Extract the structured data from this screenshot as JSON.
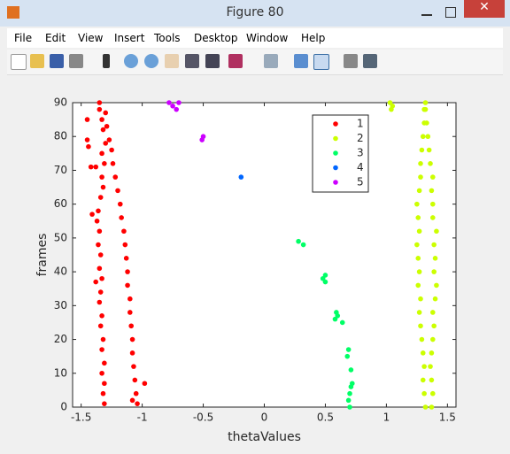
{
  "window": {
    "title": "Figure 80",
    "menu": [
      "File",
      "Edit",
      "View",
      "Insert",
      "Tools",
      "Desktop",
      "Window",
      "Help"
    ]
  },
  "chart_data": {
    "type": "scatter",
    "xlabel": "thetaValues",
    "ylabel": "frames",
    "xlim": [
      -1.57,
      1.57
    ],
    "ylim": [
      0,
      90
    ],
    "xticks": [
      -1.5,
      -1,
      -0.5,
      0,
      0.5,
      1,
      1.5
    ],
    "yticks": [
      0,
      10,
      20,
      30,
      40,
      50,
      60,
      70,
      80,
      90
    ],
    "legend": "northeast",
    "series": [
      {
        "name": "1",
        "color": "#ff0000",
        "x": [
          -1.31,
          -1.32,
          -1.31,
          -1.33,
          -1.31,
          -1.33,
          -1.32,
          -1.34,
          -1.33,
          -1.35,
          -1.34,
          -1.33,
          -1.35,
          -1.34,
          -1.36,
          -1.35,
          -1.37,
          -1.36,
          -1.34,
          -1.32,
          -1.33,
          -1.31,
          -1.33,
          -1.3,
          -1.32,
          -1.33,
          -1.35,
          -1.35,
          -1.04,
          -1.05,
          -1.06,
          -1.07,
          -1.08,
          -1.08,
          -1.09,
          -1.1,
          -1.1,
          -1.12,
          -1.12,
          -1.13,
          -1.14,
          -1.15,
          -1.17,
          -1.18,
          -1.2,
          -1.22,
          -1.24,
          -1.25,
          -1.27,
          -1.29,
          -1.3,
          -1.45,
          -1.42,
          -1.38,
          -1.45,
          -1.44,
          -1.38,
          -0.98,
          -1.08,
          -1.41
        ],
        "values": [
          1,
          4,
          7,
          10,
          13,
          17,
          20,
          24,
          27,
          31,
          34,
          38,
          41,
          45,
          48,
          52,
          55,
          58,
          62,
          65,
          68,
          72,
          75,
          78,
          82,
          85,
          88,
          90,
          1,
          4,
          8,
          12,
          16,
          20,
          24,
          28,
          32,
          36,
          40,
          44,
          48,
          52,
          56,
          60,
          64,
          68,
          72,
          76,
          79,
          83,
          87,
          85,
          71,
          71,
          79,
          77,
          37,
          7,
          2,
          57
        ]
      },
      {
        "name": "2",
        "color": "#ccff00",
        "x": [
          1.32,
          1.31,
          1.3,
          1.31,
          1.3,
          1.29,
          1.28,
          1.27,
          1.28,
          1.26,
          1.27,
          1.26,
          1.25,
          1.27,
          1.26,
          1.25,
          1.27,
          1.28,
          1.28,
          1.29,
          1.3,
          1.31,
          1.31,
          1.32,
          1.37,
          1.38,
          1.37,
          1.36,
          1.37,
          1.38,
          1.39,
          1.38,
          1.4,
          1.41,
          1.39,
          1.4,
          1.39,
          1.41,
          1.38,
          1.38,
          1.37,
          1.38,
          1.36,
          1.35,
          1.34,
          1.33,
          1.32,
          1.03,
          1.04,
          1.05
        ],
        "values": [
          0,
          4,
          8,
          12,
          16,
          20,
          24,
          28,
          32,
          36,
          40,
          44,
          48,
          52,
          56,
          60,
          64,
          68,
          72,
          76,
          80,
          84,
          88,
          90,
          0,
          4,
          8,
          12,
          16,
          20,
          24,
          28,
          32,
          36,
          40,
          44,
          48,
          52,
          56,
          60,
          64,
          68,
          72,
          76,
          80,
          84,
          88,
          90,
          88,
          89
        ]
      },
      {
        "name": "3",
        "color": "#00ff66",
        "x": [
          0.7,
          0.69,
          0.7,
          0.71,
          0.72,
          0.71,
          0.68,
          0.69,
          0.64,
          0.6,
          0.59,
          0.58,
          0.5,
          0.48,
          0.5,
          0.28,
          0.32
        ],
        "values": [
          0,
          2,
          4,
          6,
          7,
          11,
          15,
          17,
          25,
          27,
          28,
          26,
          39,
          38,
          37,
          49,
          48
        ]
      },
      {
        "name": "4",
        "color": "#0066ff",
        "x": [
          -0.19
        ],
        "values": [
          68
        ]
      },
      {
        "name": "5",
        "color": "#cc00ff",
        "x": [
          -0.78,
          -0.75,
          -0.72,
          -0.7,
          -0.5,
          -0.51
        ],
        "values": [
          90,
          89,
          88,
          90,
          80,
          79
        ]
      }
    ]
  }
}
